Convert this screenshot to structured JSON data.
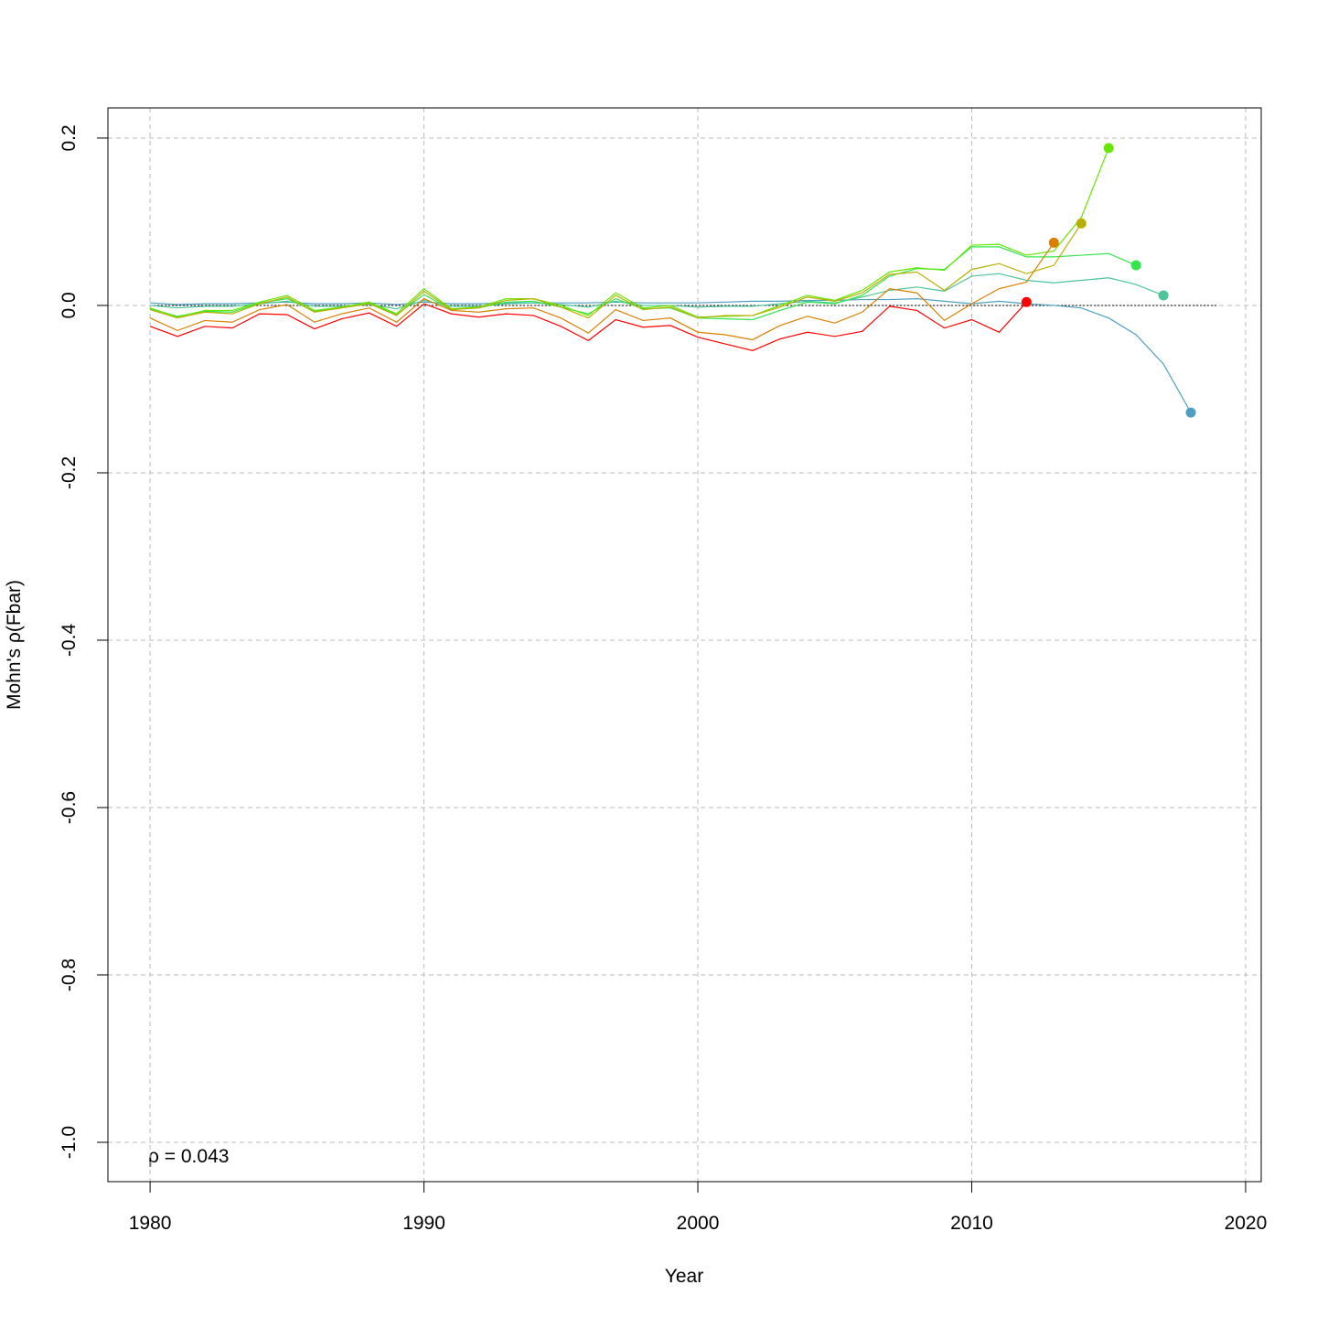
{
  "chart_data": {
    "type": "line",
    "xlabel": "Year",
    "ylabel": "Mohn's ρ(Fbar)",
    "annotation": "ρ = 0.043",
    "x": [
      1980,
      1981,
      1982,
      1983,
      1984,
      1985,
      1986,
      1987,
      1988,
      1989,
      1990,
      1991,
      1992,
      1993,
      1994,
      1995,
      1996,
      1997,
      1998,
      1999,
      2000,
      2001,
      2002,
      2003,
      2004,
      2005,
      2006,
      2007,
      2008,
      2009,
      2010,
      2011,
      2012,
      2013,
      2014,
      2015,
      2016,
      2017,
      2018
    ],
    "series": [
      {
        "color": "#4f9fc0",
        "values": [
          0.003,
          0.001,
          0.002,
          0.002,
          0.003,
          0.004,
          0.002,
          0.002,
          0.003,
          0.001,
          0.004,
          0.002,
          0.002,
          0.003,
          0.003,
          0.003,
          0.003,
          0.004,
          0.003,
          0.003,
          0.003,
          0.004,
          0.005,
          0.005,
          0.006,
          0.006,
          0.007,
          0.007,
          0.008,
          0.005,
          0.002,
          0.005,
          0.002,
          0.0,
          -0.003,
          -0.015,
          -0.035,
          -0.07,
          -0.128
        ]
      },
      {
        "color": "#4dc49a",
        "values": [
          0.0,
          -0.003,
          -0.001,
          -0.001,
          0.002,
          0.005,
          -0.001,
          -0.001,
          0.001,
          -0.004,
          0.006,
          -0.001,
          -0.001,
          0.002,
          0.003,
          0.001,
          -0.002,
          0.005,
          0.0,
          0.0,
          -0.002,
          -0.001,
          -0.001,
          0.002,
          0.005,
          0.003,
          0.01,
          0.018,
          0.022,
          0.017,
          0.035,
          0.038,
          0.03,
          0.027,
          0.03,
          0.033,
          0.025,
          0.012,
          null
        ]
      },
      {
        "color": "#33e64d",
        "values": [
          -0.004,
          -0.013,
          -0.007,
          -0.008,
          0.003,
          0.008,
          -0.007,
          -0.003,
          0.003,
          -0.011,
          0.013,
          -0.005,
          -0.003,
          0.004,
          0.005,
          -0.002,
          -0.01,
          0.008,
          -0.004,
          -0.003,
          -0.015,
          -0.016,
          -0.017,
          -0.006,
          0.004,
          0.002,
          0.012,
          0.035,
          0.044,
          0.043,
          0.07,
          0.07,
          0.058,
          0.058,
          0.06,
          0.062,
          0.048,
          null,
          null
        ]
      },
      {
        "color": "#66e600",
        "values": [
          -0.003,
          -0.014,
          -0.006,
          -0.006,
          0.004,
          0.012,
          -0.006,
          -0.002,
          0.004,
          -0.01,
          0.02,
          -0.004,
          -0.002,
          0.008,
          0.008,
          0.0,
          -0.012,
          0.015,
          -0.003,
          0.0,
          -0.014,
          -0.013,
          -0.012,
          0.0,
          0.012,
          0.006,
          0.018,
          0.04,
          0.045,
          0.042,
          0.072,
          0.073,
          0.06,
          0.065,
          0.105,
          0.188,
          null,
          null,
          null
        ]
      },
      {
        "color": "#b8b000",
        "values": [
          -0.005,
          -0.015,
          -0.008,
          -0.01,
          0.002,
          0.01,
          -0.008,
          -0.003,
          0.002,
          -0.012,
          0.017,
          -0.005,
          -0.003,
          0.006,
          0.008,
          -0.002,
          -0.015,
          0.012,
          -0.005,
          -0.002,
          -0.015,
          -0.012,
          -0.012,
          -0.002,
          0.01,
          0.005,
          0.015,
          0.037,
          0.04,
          0.018,
          0.043,
          0.05,
          0.038,
          0.048,
          0.098,
          null,
          null,
          null,
          null
        ]
      },
      {
        "color": "#d98000",
        "values": [
          -0.015,
          -0.03,
          -0.018,
          -0.02,
          -0.005,
          0.001,
          -0.02,
          -0.01,
          -0.003,
          -0.02,
          0.008,
          -0.006,
          -0.008,
          -0.004,
          -0.003,
          -0.015,
          -0.033,
          -0.005,
          -0.018,
          -0.015,
          -0.032,
          -0.035,
          -0.041,
          -0.024,
          -0.013,
          -0.021,
          -0.008,
          0.02,
          0.015,
          -0.018,
          0.002,
          0.02,
          0.028,
          0.075,
          null,
          null,
          null,
          null,
          null
        ]
      },
      {
        "color": "#ff0000",
        "values": [
          -0.025,
          -0.037,
          -0.025,
          -0.027,
          -0.01,
          -0.011,
          -0.028,
          -0.016,
          -0.009,
          -0.025,
          0.002,
          -0.01,
          -0.014,
          -0.01,
          -0.012,
          -0.025,
          -0.042,
          -0.017,
          -0.026,
          -0.024,
          -0.038,
          -0.046,
          -0.054,
          -0.04,
          -0.032,
          -0.037,
          -0.031,
          -0.001,
          -0.006,
          -0.027,
          -0.017,
          -0.032,
          0.004,
          null,
          null,
          null,
          null,
          null,
          null
        ]
      }
    ],
    "zero_line": {
      "x": [
        1980,
        2019
      ],
      "y": 0
    },
    "xlim": [
      1978.46,
      2020.57
    ],
    "ylim": [
      -1.047,
      0.236
    ],
    "xticks": [
      1980,
      1990,
      2000,
      2010,
      2020
    ],
    "yticks": [
      0.2,
      {
        "value": 0,
        "label": "0.0"
      },
      -0.2,
      -0.4,
      -0.6,
      -0.8,
      {
        "value": -1,
        "label": "-1.0"
      }
    ],
    "grid": true
  }
}
